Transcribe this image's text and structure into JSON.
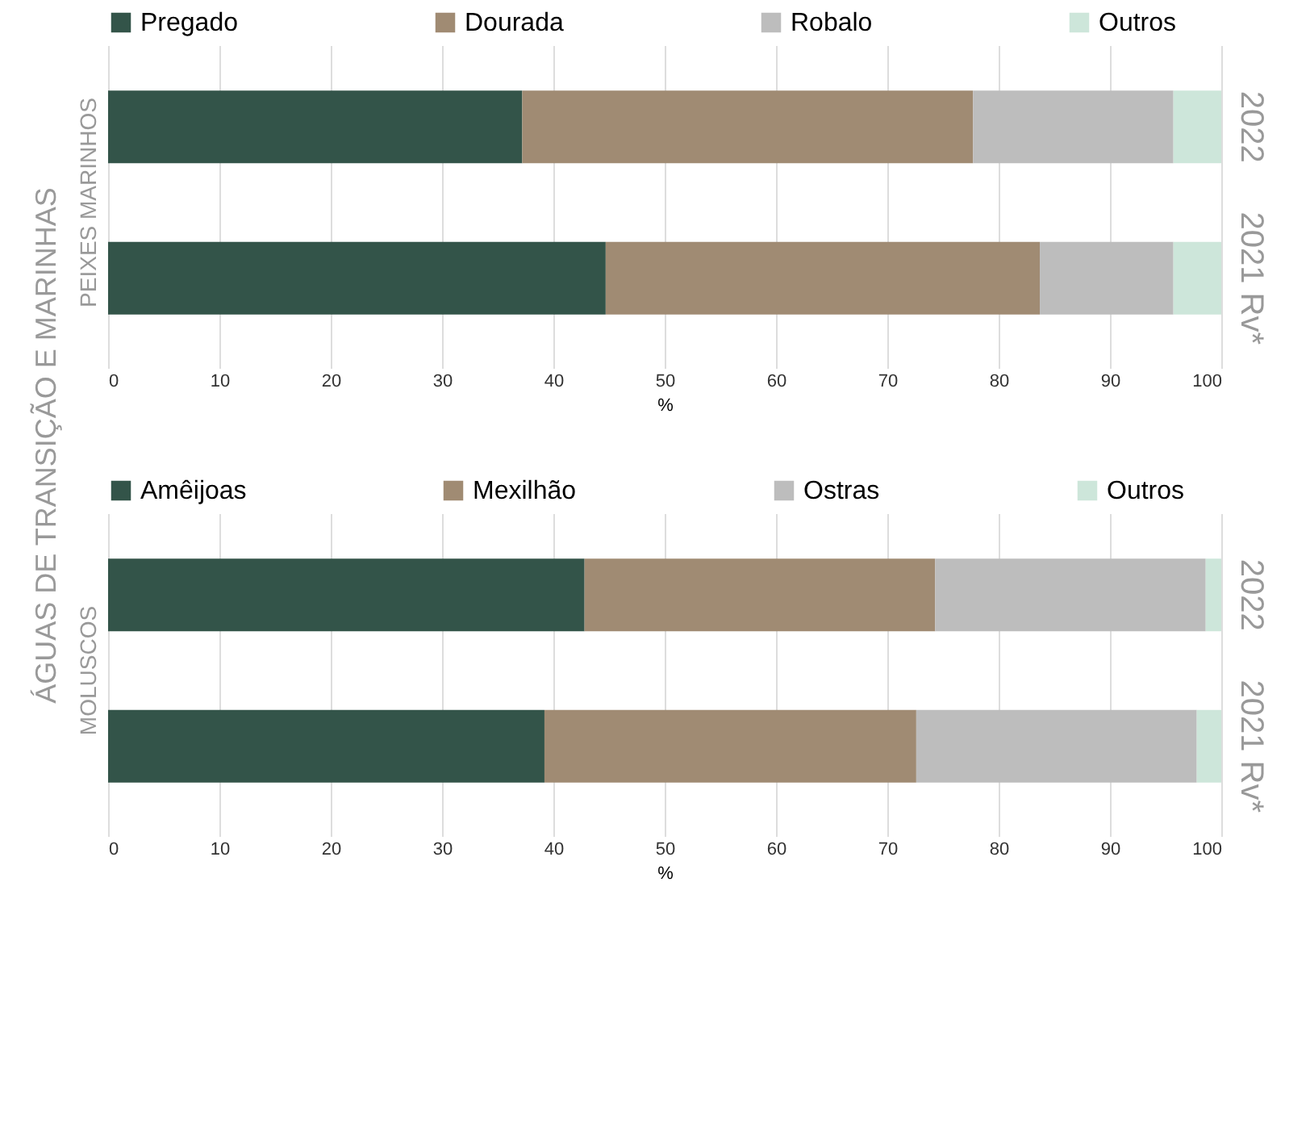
{
  "chart_data": [
    {
      "type": "bar",
      "orientation": "horizontal",
      "stacked": true,
      "ylabel": "PEIXES MARINHOS",
      "xlabel": "%",
      "annotations": [
        "ÁGUAS DE TRANSIÇÃO E MARINHAS"
      ],
      "categories": [
        "2022",
        "2021 Rv*"
      ],
      "series": [
        {
          "name": "Pregado",
          "color": "#335449",
          "values": [
            37.2,
            44.7
          ]
        },
        {
          "name": "Dourada",
          "color": "#a08b73",
          "values": [
            40.5,
            39.0
          ]
        },
        {
          "name": "Robalo",
          "color": "#bdbdbd",
          "values": [
            18.0,
            12.0
          ]
        },
        {
          "name": "Outros",
          "color": "#cde6da",
          "values": [
            4.3,
            4.3
          ]
        }
      ],
      "xlim": [
        0,
        100
      ],
      "xticks": [
        0,
        10,
        20,
        30,
        40,
        50,
        60,
        70,
        80,
        90,
        100
      ],
      "grid": "x",
      "legend": "top"
    },
    {
      "type": "bar",
      "orientation": "horizontal",
      "stacked": true,
      "ylabel": "MOLUSCOS",
      "xlabel": "%",
      "categories": [
        "2022",
        "2021 Rv*"
      ],
      "series": [
        {
          "name": "Amêijoas",
          "color": "#335449",
          "values": [
            42.8,
            39.2
          ]
        },
        {
          "name": "Mexilhão",
          "color": "#a08b73",
          "values": [
            31.5,
            33.4
          ]
        },
        {
          "name": "Ostras",
          "color": "#bdbdbd",
          "values": [
            24.3,
            25.2
          ]
        },
        {
          "name": "Outros",
          "color": "#cde6da",
          "values": [
            1.4,
            2.2
          ]
        }
      ],
      "xlim": [
        0,
        100
      ],
      "xticks": [
        0,
        10,
        20,
        30,
        40,
        50,
        60,
        70,
        80,
        90,
        100
      ],
      "grid": "x",
      "legend": "top"
    }
  ]
}
